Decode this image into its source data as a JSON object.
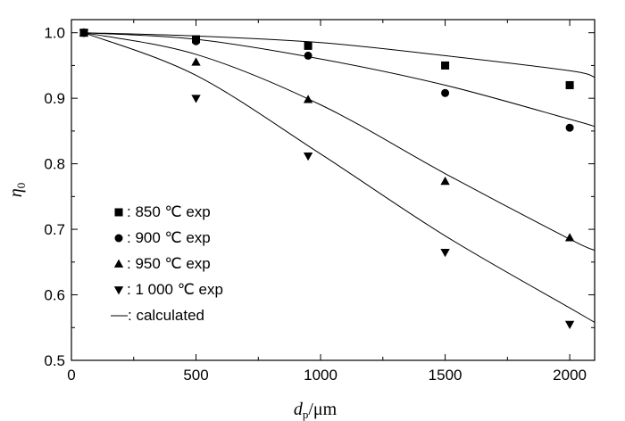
{
  "chart_data": {
    "type": "scatter",
    "xlim": [
      0,
      2100
    ],
    "ylim": [
      0.5,
      1.02
    ],
    "x_major_ticks": [
      0,
      500,
      1000,
      1500,
      2000
    ],
    "x_tick_labels": [
      "0",
      "500",
      "1000",
      "1500",
      "2000"
    ],
    "y_major_ticks": [
      0.5,
      0.6,
      0.7,
      0.8,
      0.9,
      1.0
    ],
    "y_tick_labels": [
      "0.5",
      "0.6",
      "0.7",
      "0.8",
      "0.9",
      "1.0"
    ],
    "xlabel": {
      "var": "d",
      "sub": "p",
      "unit": "/μm"
    },
    "ylabel": {
      "var": "η",
      "sub": "0"
    },
    "grid": false,
    "legend_position": "bottom-left",
    "series": [
      {
        "name": "850 ℃  exp",
        "marker": "square",
        "x": [
          50,
          500,
          950,
          1500,
          2000
        ],
        "y": [
          1.0,
          0.99,
          0.98,
          0.95,
          0.92
        ]
      },
      {
        "name": "900 ℃  exp",
        "marker": "circle",
        "x": [
          50,
          500,
          950,
          1500,
          2000
        ],
        "y": [
          1.0,
          0.987,
          0.965,
          0.908,
          0.855
        ]
      },
      {
        "name": "950 ℃  exp",
        "marker": "triangle-up",
        "x": [
          50,
          500,
          950,
          1500,
          2000
        ],
        "y": [
          1.0,
          0.955,
          0.898,
          0.773,
          0.687
        ]
      },
      {
        "name": "1 000 ℃  exp",
        "marker": "triangle-down",
        "x": [
          50,
          500,
          950,
          1500,
          2000
        ],
        "y": [
          1.0,
          0.9,
          0.812,
          0.665,
          0.555
        ]
      }
    ],
    "curves": [
      {
        "x": [
          50,
          500,
          1000,
          1500,
          2000,
          2100
        ],
        "y": [
          1.0,
          0.995,
          0.985,
          0.965,
          0.942,
          0.932
        ]
      },
      {
        "x": [
          50,
          500,
          1000,
          1500,
          2000,
          2100
        ],
        "y": [
          1.0,
          0.99,
          0.96,
          0.92,
          0.868,
          0.857
        ]
      },
      {
        "x": [
          50,
          500,
          1000,
          1500,
          2000,
          2100
        ],
        "y": [
          1.0,
          0.967,
          0.89,
          0.785,
          0.685,
          0.668
        ]
      },
      {
        "x": [
          50,
          500,
          1000,
          1500,
          2000,
          2100
        ],
        "y": [
          1.0,
          0.935,
          0.815,
          0.69,
          0.58,
          0.558
        ]
      }
    ],
    "curve_legend_label": "calculated"
  }
}
